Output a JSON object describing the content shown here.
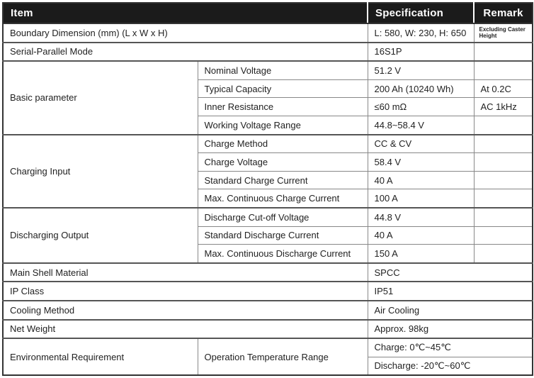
{
  "header": {
    "item": "Item",
    "specification": "Specification",
    "remark": "Remark"
  },
  "rows": {
    "boundary": {
      "label": "Boundary Dimension (mm) (L x W x H)",
      "spec": "L: 580, W: 230, H: 650",
      "remark": "Excluding Caster Height"
    },
    "serial_parallel": {
      "label": "Serial-Parallel Mode",
      "spec": "16S1P",
      "remark": ""
    },
    "basic": {
      "label": "Basic parameter",
      "items": [
        {
          "name": "Nominal Voltage",
          "spec": "51.2 V",
          "remark": ""
        },
        {
          "name": "Typical Capacity",
          "spec": "200 Ah (10240 Wh)",
          "remark": "At 0.2C"
        },
        {
          "name": "Inner Resistance",
          "spec": "≤60 mΩ",
          "remark": "AC 1kHz"
        },
        {
          "name": "Working Voltage Range",
          "spec": "44.8~58.4 V",
          "remark": ""
        }
      ]
    },
    "charging": {
      "label": "Charging Input",
      "items": [
        {
          "name": "Charge Method",
          "spec": "CC & CV",
          "remark": ""
        },
        {
          "name": "Charge Voltage",
          "spec": "58.4 V",
          "remark": ""
        },
        {
          "name": "Standard Charge Current",
          "spec": "40 A",
          "remark": ""
        },
        {
          "name": "Max. Continuous Charge Current",
          "spec": "100 A",
          "remark": ""
        }
      ]
    },
    "discharging": {
      "label": "Discharging Output",
      "items": [
        {
          "name": "Discharge Cut-off Voltage",
          "spec": "44.8 V",
          "remark": ""
        },
        {
          "name": "Standard Discharge Current",
          "spec": "40 A",
          "remark": ""
        },
        {
          "name": "Max. Continuous Discharge Current",
          "spec": "150 A",
          "remark": ""
        }
      ]
    },
    "shell": {
      "label": "Main Shell Material",
      "spec": "SPCC"
    },
    "ip": {
      "label": "IP Class",
      "spec": "IP51"
    },
    "cooling": {
      "label": "Cooling Method",
      "spec": "Air Cooling"
    },
    "weight": {
      "label": "Net Weight",
      "spec": "Approx. 98kg"
    },
    "environment": {
      "label": "Environmental Requirement",
      "sub_label": "Operation Temperature Range",
      "specs": [
        "Charge: 0℃~45℃",
        "Discharge: -20℃~60℃"
      ]
    }
  },
  "colors": {
    "header_bg": "#1b1b1b",
    "header_text": "#ffffff",
    "grid_line": "#888888",
    "section_line": "#555555",
    "outer_border": "#333333",
    "text": "#222222"
  }
}
